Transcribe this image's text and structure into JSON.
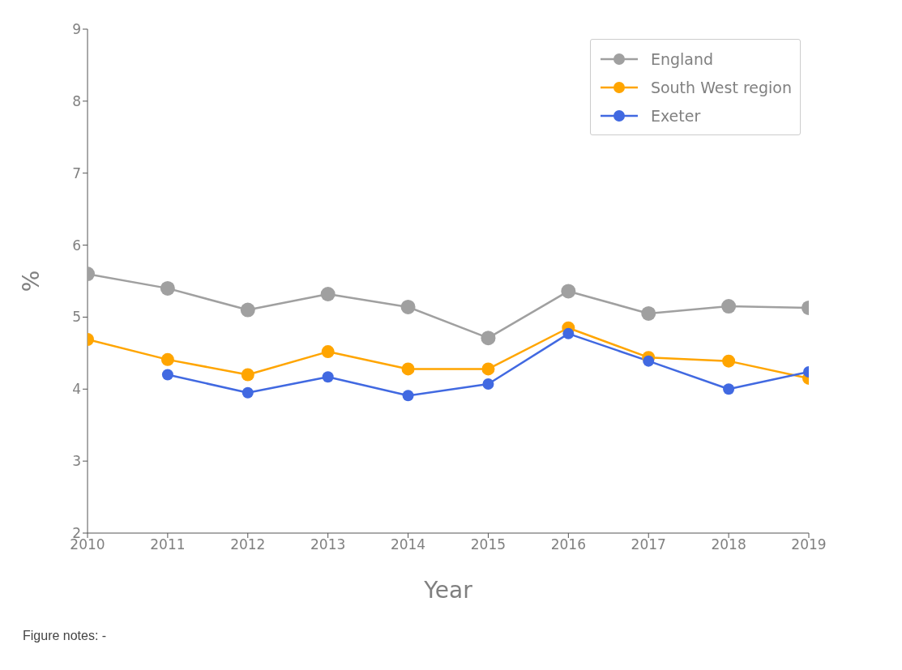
{
  "chart_data": {
    "type": "line",
    "xlabel": "Year",
    "ylabel": "%",
    "x": [
      2010,
      2011,
      2012,
      2013,
      2014,
      2015,
      2016,
      2017,
      2018,
      2019
    ],
    "series": [
      {
        "name": "England",
        "color": "#a0a0a0",
        "values": [
          5.6,
          5.4,
          5.1,
          5.32,
          5.14,
          4.71,
          5.36,
          5.05,
          5.15,
          5.13
        ]
      },
      {
        "name": "South West region",
        "color": "#ffa500",
        "values": [
          4.69,
          4.41,
          4.2,
          4.52,
          4.28,
          4.28,
          4.85,
          4.44,
          4.39,
          4.15
        ]
      },
      {
        "name": "Exeter",
        "color": "#4169e1",
        "values": [
          null,
          4.2,
          3.95,
          4.17,
          3.91,
          4.07,
          4.77,
          4.39,
          4.0,
          4.24
        ]
      }
    ],
    "xlim": [
      2010,
      2019
    ],
    "xticks": [
      2010,
      2011,
      2012,
      2013,
      2014,
      2015,
      2016,
      2017,
      2018,
      2019
    ],
    "ylim": [
      2,
      9
    ],
    "yticks": [
      2,
      3,
      4,
      5,
      6,
      7,
      8,
      9
    ],
    "legend": "top right",
    "marker": "circle",
    "line_style": "solid",
    "grid": false,
    "annotations": [
      "Figure notes: -"
    ]
  }
}
